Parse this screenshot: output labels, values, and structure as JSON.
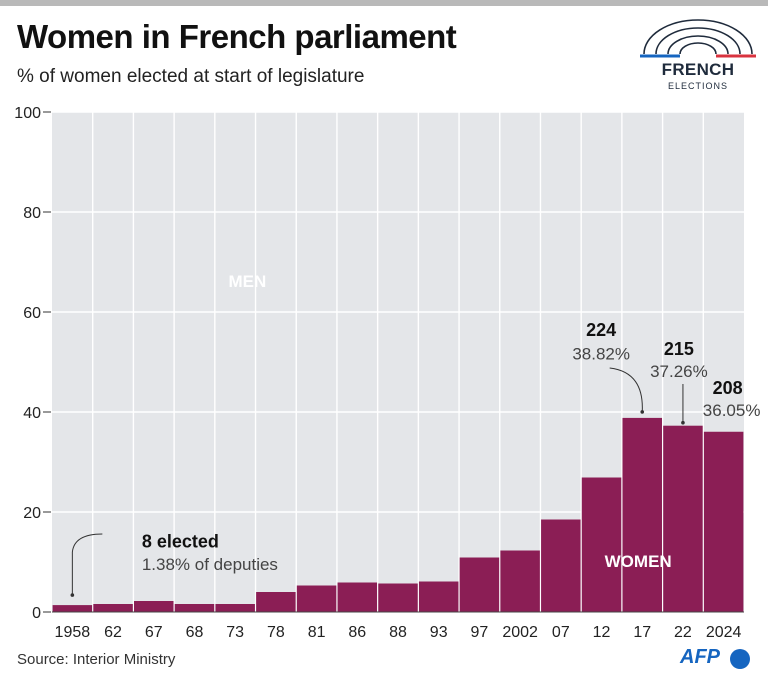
{
  "header": {
    "title": "Women in French parliament",
    "subtitle": "% of women elected at start of legislature"
  },
  "logo": {
    "word": "FRENCH",
    "sub": "ELECTIONS"
  },
  "footer": {
    "source": "Source: Interior Ministry",
    "credit": "AFP"
  },
  "colors": {
    "women": "#8b1e55",
    "men": "#e4e6e9",
    "grid": "#ffffff",
    "accent_blue": "#1565c0",
    "accent_red": "#d9333f"
  },
  "chart_data": {
    "type": "bar",
    "title": "Women in French parliament",
    "subtitle": "% of women elected at start of legislature",
    "categories": [
      "1958",
      "62",
      "67",
      "68",
      "73",
      "78",
      "81",
      "86",
      "88",
      "93",
      "97",
      "2002",
      "07",
      "12",
      "17",
      "22",
      "2024"
    ],
    "values": [
      1.38,
      1.6,
      2.2,
      1.6,
      1.6,
      4.0,
      5.3,
      5.9,
      5.7,
      6.1,
      10.9,
      12.3,
      18.5,
      26.9,
      38.82,
      37.26,
      36.05
    ],
    "series": [
      {
        "name": "WOMEN",
        "values": [
          1.38,
          1.6,
          2.2,
          1.6,
          1.6,
          4.0,
          5.3,
          5.9,
          5.7,
          6.1,
          10.9,
          12.3,
          18.5,
          26.9,
          38.82,
          37.26,
          36.05
        ]
      }
    ],
    "region_labels": {
      "men": "MEN",
      "women": "WOMEN"
    },
    "ylim": [
      0,
      100
    ],
    "yticks": [
      "0",
      "20",
      "40",
      "60",
      "80",
      "100"
    ],
    "grid": true,
    "annotations": [
      {
        "index": 0,
        "count": "8 elected",
        "pct": "1.38% of deputies"
      },
      {
        "index": 14,
        "count": "224",
        "pct": "38.82%"
      },
      {
        "index": 15,
        "count": "215",
        "pct": "37.26%"
      },
      {
        "index": 16,
        "count": "208",
        "pct": "36.05%"
      }
    ]
  }
}
